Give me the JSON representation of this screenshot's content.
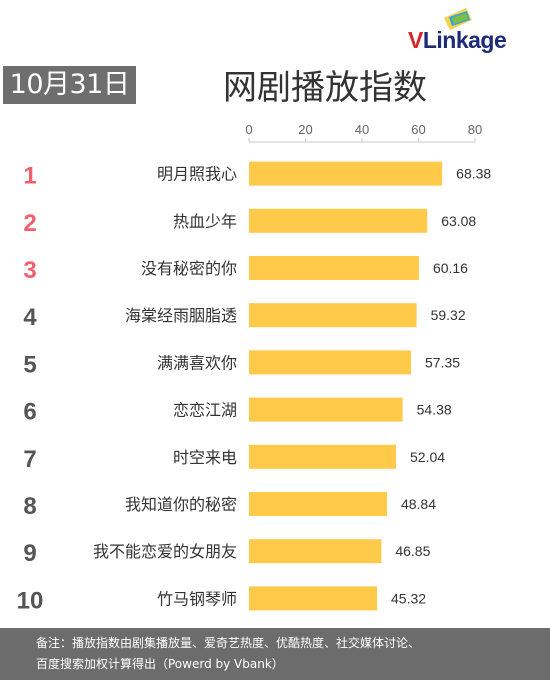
{
  "logo": {
    "v": "V",
    "rest": "Linkage"
  },
  "date": "10月31日",
  "chart_data": {
    "type": "bar",
    "orientation": "horizontal",
    "title": "网剧播放指数",
    "ranks": [
      "1",
      "2",
      "3",
      "4",
      "5",
      "6",
      "7",
      "8",
      "9",
      "10"
    ],
    "categories": [
      "明月照我心",
      "热血少年",
      "没有秘密的你",
      "海棠经雨胭脂透",
      "满满喜欢你",
      "恋恋江湖",
      "时空来电",
      "我知道你的秘密",
      "我不能恋爱的女朋友",
      "竹马钢琴师"
    ],
    "values": [
      68.38,
      63.08,
      60.16,
      59.32,
      57.35,
      54.38,
      52.04,
      48.84,
      46.85,
      45.32
    ],
    "value_labels": [
      "68.38",
      "63.08",
      "60.16",
      "59.32",
      "57.35",
      "54.38",
      "52.04",
      "48.84",
      "46.85",
      "45.32"
    ],
    "xlim": [
      0,
      80
    ],
    "xticks": [
      "0",
      "20",
      "40",
      "60",
      "80"
    ],
    "grid": false,
    "colors": {
      "bar": "#ffc94a",
      "rank_top": "#f0606e",
      "rank": "#555555",
      "axis": "#c8c8c8",
      "tick": "#666666",
      "label": "#333333"
    }
  },
  "footer": {
    "line1": "备注：播放指数由剧集播放量、爱奇艺热度、优酷热度、社交媒体讨论、",
    "line2": "百度搜索加权计算得出（Powerd by Vbank）"
  }
}
